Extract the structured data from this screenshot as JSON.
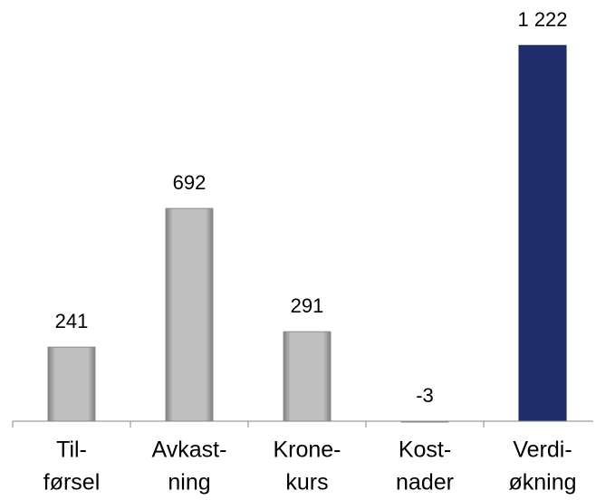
{
  "chart_data": {
    "type": "bar",
    "categories": [
      [
        "Til-",
        "førsel"
      ],
      [
        "Avkast-",
        "ning"
      ],
      [
        "Krone-",
        "kurs"
      ],
      [
        "Kost-",
        "nader"
      ],
      [
        "Verdi-",
        "økning"
      ]
    ],
    "values": [
      241,
      692,
      291,
      -3,
      1222
    ],
    "value_labels": [
      "241",
      "692",
      "291",
      "-3",
      "1 222"
    ],
    "colors": [
      "#a6a6a6",
      "#a6a6a6",
      "#a6a6a6",
      "#a6a6a6",
      "#1f2f6e"
    ],
    "ylim": [
      0,
      1370
    ]
  }
}
